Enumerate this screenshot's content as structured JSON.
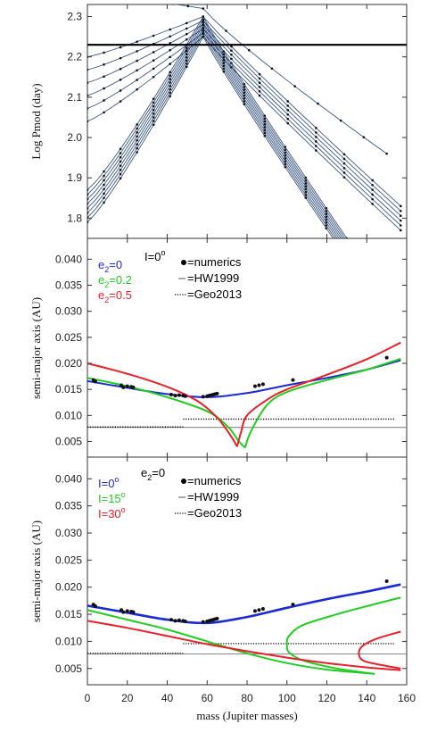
{
  "chart_data": [
    {
      "type": "line",
      "ylabel": "Log Pmod (day)",
      "xlim": [
        0,
        160
      ],
      "ylim": [
        1.75,
        2.33
      ],
      "yticks": [
        "1.8",
        "1.9",
        "2.0",
        "2.1",
        "2.2",
        "2.3"
      ],
      "ytick_values": [
        1.8,
        1.9,
        2.0,
        2.1,
        2.2,
        2.3
      ],
      "reference_line": {
        "y": 2.23,
        "color": "#000000"
      },
      "peak": {
        "x": 58,
        "y_top": 2.3,
        "y_bottom": 2.25
      },
      "family_left_upper": {
        "x0": 0,
        "y0_top": 2.2,
        "y0_bottom": 2.04,
        "count": 6
      },
      "family_left_lower": {
        "x0": 0,
        "y0_top": 1.87,
        "y0_bottom": 1.79,
        "count": 8
      },
      "family_right_outer": {
        "x_end": 150,
        "y_end": 1.96
      },
      "family_right_middle": {
        "x_end": 157,
        "y_end_top": 1.83,
        "y_end_bottom": 1.77,
        "count": 6
      },
      "family_right_inner": {
        "x_end": 130,
        "y_end": 1.75,
        "count": 8
      },
      "series_color": "#1a3a6a"
    },
    {
      "type": "line",
      "ylabel": "semi-major axis (AU)",
      "xlim": [
        0,
        160
      ],
      "ylim": [
        0.002,
        0.044
      ],
      "yticks": [
        "0.005",
        "0.010",
        "0.015",
        "0.020",
        "0.025",
        "0.030",
        "0.035",
        "0.040"
      ],
      "ytick_values": [
        0.005,
        0.01,
        0.015,
        0.02,
        0.025,
        0.03,
        0.035,
        0.04
      ],
      "annotation": "I=0",
      "legend": [
        {
          "label": "e",
          "sub": "2",
          "rest": "=0",
          "color": "#1a2ad4"
        },
        {
          "label": "e",
          "sub": "2",
          "rest": "=0.2",
          "color": "#22cc22"
        },
        {
          "label": "e",
          "sub": "2",
          "rest": "=0.5",
          "color": "#e8202a"
        }
      ],
      "legend_keys": [
        "=numerics",
        "=HW1999",
        "=Geo2013"
      ],
      "hw1999": 0.0077,
      "geo2013": {
        "left": 0.0078,
        "right": 0.0093,
        "break_x": 48
      },
      "series": [
        {
          "name": "e2=0",
          "color": "#1a2ad4",
          "x": [
            0,
            20,
            40,
            60,
            80,
            100,
            120,
            140,
            157
          ],
          "y": [
            0.0166,
            0.0153,
            0.0141,
            0.0135,
            0.0143,
            0.0158,
            0.0172,
            0.0188,
            0.0206
          ]
        },
        {
          "name": "e2=0.2 (left)",
          "color": "#22cc22",
          "x": [
            0,
            20,
            40,
            60,
            70,
            76,
            79
          ],
          "y": [
            0.0172,
            0.0156,
            0.0135,
            0.0108,
            0.008,
            0.005,
            0.0038
          ]
        },
        {
          "name": "e2=0.2 (right)",
          "color": "#22cc22",
          "x": [
            79,
            82,
            90,
            100,
            120,
            140,
            157
          ],
          "y": [
            0.0038,
            0.007,
            0.012,
            0.0145,
            0.0168,
            0.0188,
            0.0209
          ]
        },
        {
          "name": "e2=0.5 (left)",
          "color": "#e8202a",
          "x": [
            0,
            20,
            40,
            55,
            65,
            72,
            75
          ],
          "y": [
            0.02,
            0.018,
            0.0155,
            0.0128,
            0.0096,
            0.006,
            0.004
          ]
        },
        {
          "name": "e2=0.5 (right)",
          "color": "#e8202a",
          "x": [
            75,
            77,
            80,
            90,
            100,
            120,
            140,
            157
          ],
          "y": [
            0.004,
            0.0068,
            0.01,
            0.013,
            0.015,
            0.0178,
            0.0208,
            0.024
          ]
        }
      ],
      "numerics": {
        "x": [
          3,
          4,
          17,
          18,
          20,
          22,
          23,
          42,
          44,
          46,
          48,
          49,
          58,
          60,
          61,
          62,
          63,
          64,
          65,
          84,
          86,
          88,
          103,
          150
        ],
        "y": [
          0.0168,
          0.0165,
          0.0158,
          0.0154,
          0.0156,
          0.0155,
          0.0154,
          0.014,
          0.0138,
          0.0139,
          0.0138,
          0.0137,
          0.0136,
          0.0137,
          0.0138,
          0.0139,
          0.014,
          0.0141,
          0.0142,
          0.0156,
          0.0158,
          0.016,
          0.0168,
          0.0211
        ]
      }
    },
    {
      "type": "line",
      "xlabel": "mass (Jupiter masses)",
      "ylabel": "semi-major axis (AU)",
      "xlim": [
        0,
        160
      ],
      "ylim": [
        0.002,
        0.044
      ],
      "xticks": [
        "0",
        "20",
        "40",
        "60",
        "80",
        "100",
        "120",
        "140",
        "160"
      ],
      "xtick_values": [
        0,
        20,
        40,
        60,
        80,
        100,
        120,
        140,
        160
      ],
      "yticks": [
        "0.005",
        "0.010",
        "0.015",
        "0.020",
        "0.025",
        "0.030",
        "0.035",
        "0.040"
      ],
      "ytick_values": [
        0.005,
        0.01,
        0.015,
        0.02,
        0.025,
        0.03,
        0.035,
        0.04
      ],
      "annotation": "e2=0",
      "legend": [
        {
          "label": "I=0",
          "color": "#1a2ad4"
        },
        {
          "label": "I=15",
          "color": "#22cc22"
        },
        {
          "label": "I=30",
          "color": "#e8202a"
        }
      ],
      "legend_keys": [
        "=numerics",
        "=HW1999",
        "=Geo2013"
      ],
      "hw1999": 0.0077,
      "geo2013": {
        "left": 0.0078,
        "right": 0.0096,
        "break_x": 48
      },
      "series": [
        {
          "name": "I=0",
          "color": "#1a2ad4",
          "x": [
            0,
            20,
            40,
            60,
            80,
            100,
            120,
            140,
            157
          ],
          "y": [
            0.0166,
            0.0153,
            0.014,
            0.0134,
            0.0145,
            0.0162,
            0.0178,
            0.0192,
            0.0205
          ]
        },
        {
          "name": "I=15 (lower)",
          "color": "#22cc22",
          "x": [
            0,
            20,
            40,
            60,
            80,
            100,
            120,
            144
          ],
          "y": [
            0.0158,
            0.014,
            0.0122,
            0.01,
            0.0078,
            0.006,
            0.0048,
            0.004
          ]
        },
        {
          "name": "I=15 (fold)",
          "color": "#22cc22",
          "x": [
            144,
            125,
            108,
            101,
            100,
            101,
            108,
            125,
            140,
            157
          ],
          "y": [
            0.004,
            0.005,
            0.0065,
            0.008,
            0.0095,
            0.011,
            0.013,
            0.015,
            0.0165,
            0.0181
          ]
        },
        {
          "name": "I=30 (lower)",
          "color": "#e8202a",
          "x": [
            0,
            20,
            40,
            60,
            80,
            100,
            120,
            140,
            157
          ],
          "y": [
            0.0138,
            0.0125,
            0.011,
            0.0095,
            0.0082,
            0.007,
            0.006,
            0.0052,
            0.0047
          ]
        },
        {
          "name": "I=30 (fold)",
          "color": "#e8202a",
          "x": [
            157,
            145,
            138,
            136,
            138,
            145,
            157
          ],
          "y": [
            0.005,
            0.0058,
            0.0065,
            0.0078,
            0.0092,
            0.0105,
            0.0118
          ]
        }
      ],
      "numerics": {
        "x": [
          3,
          4,
          17,
          18,
          20,
          22,
          23,
          42,
          44,
          46,
          48,
          49,
          58,
          60,
          61,
          62,
          63,
          64,
          65,
          84,
          86,
          88,
          103,
          150
        ],
        "y": [
          0.0168,
          0.0165,
          0.0158,
          0.0154,
          0.0156,
          0.0155,
          0.0154,
          0.014,
          0.0138,
          0.0139,
          0.0138,
          0.0137,
          0.0136,
          0.0137,
          0.0138,
          0.0139,
          0.014,
          0.0141,
          0.0142,
          0.0156,
          0.0158,
          0.016,
          0.0168,
          0.0211
        ]
      }
    }
  ],
  "degree_symbol": "o"
}
